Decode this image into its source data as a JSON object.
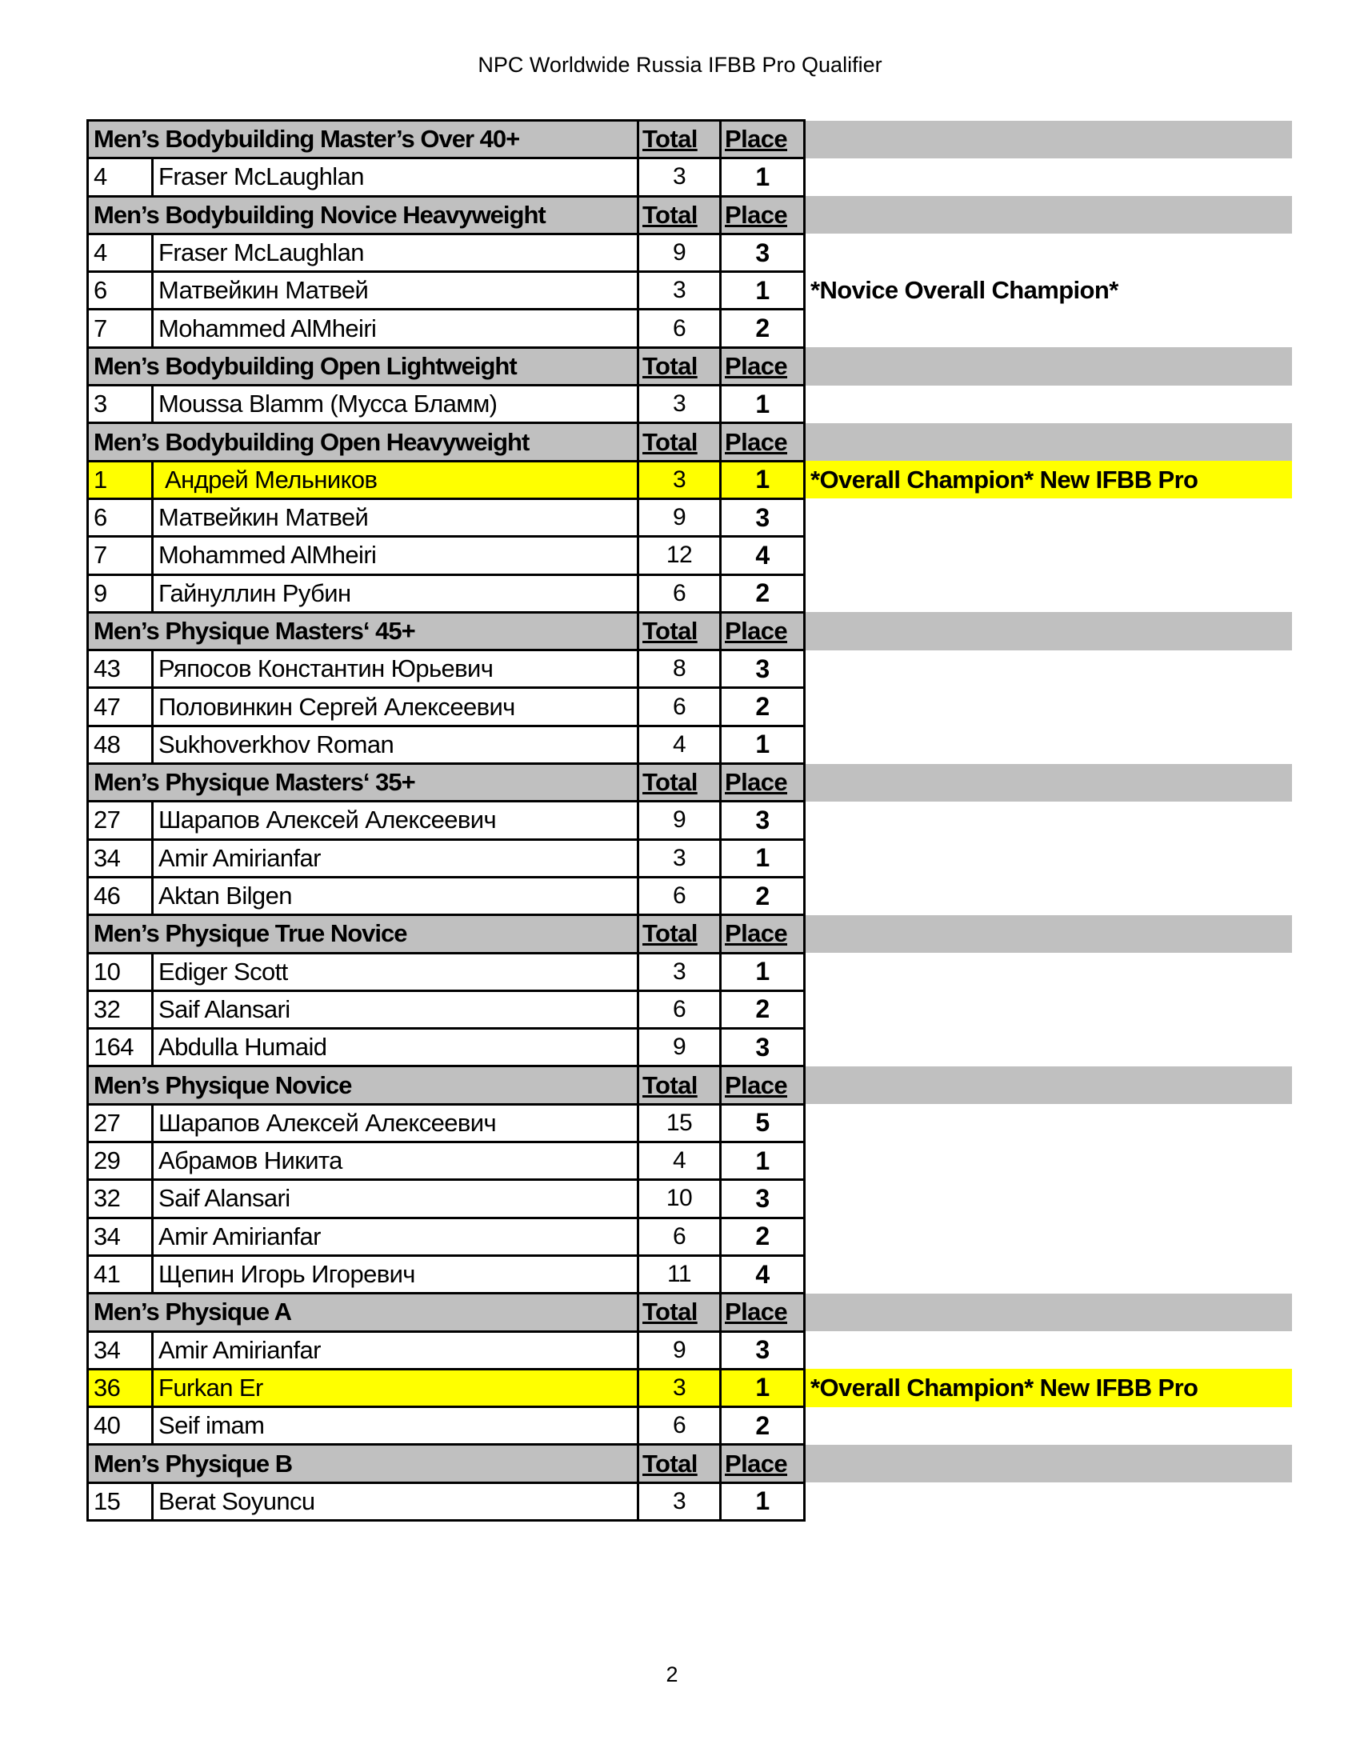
{
  "title": "NPC Worldwide Russia IFBB Pro Qualifier",
  "page_number": "2",
  "colors": {
    "header_bg": "#c0c0c0",
    "highlight": "#ffff00"
  },
  "sections": [
    {
      "name": "Men’s Bodybuilding Master’s Over 40+",
      "total_label": "Total",
      "place_label": "Place",
      "rows": [
        {
          "no": "4",
          "name": "Fraser McLaughlan",
          "total": "3",
          "place": "1"
        }
      ]
    },
    {
      "name": "Men’s Bodybuilding Novice Heavyweight",
      "total_label": "Total",
      "place_label": "Place",
      "rows": [
        {
          "no": "4",
          "name": "Fraser McLaughlan",
          "total": "9",
          "place": "3"
        },
        {
          "no": "6",
          "name": "Матвейкин Матвей",
          "total": "3",
          "place": "1",
          "note": "*Novice Overall Champion*"
        },
        {
          "no": "7",
          "name": "Mohammed AlMheiri",
          "total": "6",
          "place": "2"
        }
      ]
    },
    {
      "name": "Men’s Bodybuilding Open Lightweight",
      "total_label": "Total",
      "place_label": "Place",
      "rows": [
        {
          "no": "3",
          "name": "Moussa Blamm (Мусса Бламм)",
          "total": "3",
          "place": "1"
        }
      ]
    },
    {
      "name": "Men’s Bodybuilding Open Heavyweight",
      "total_label": "Total",
      "place_label": "Place",
      "rows": [
        {
          "no": "1",
          "name": " Андрей Мельников",
          "total": "3",
          "place": "1",
          "note": "*Overall Champion* New IFBB Pro",
          "highlight": true
        },
        {
          "no": "6",
          "name": "Матвейкин Матвей",
          "total": "9",
          "place": "3"
        },
        {
          "no": "7",
          "name": "Mohammed AlMheiri",
          "total": "12",
          "place": "4"
        },
        {
          "no": "9",
          "name": "Гайнуллин Рубин",
          "total": "6",
          "place": "2"
        }
      ]
    },
    {
      "name": "Men’s Physique Masters‘ 45+",
      "total_label": "Total",
      "place_label": "Place",
      "rows": [
        {
          "no": "43",
          "name": "Ряпосов Константин Юрьевич",
          "total": "8",
          "place": "3"
        },
        {
          "no": "47",
          "name": "Половинкин Сергей Алексеевич",
          "total": "6",
          "place": "2"
        },
        {
          "no": "48",
          "name": "Sukhoverkhov Roman",
          "total": "4",
          "place": "1"
        }
      ]
    },
    {
      "name": "Men’s Physique Masters‘ 35+",
      "total_label": "Total",
      "place_label": "Place",
      "rows": [
        {
          "no": "27",
          "name": "Шарапов Алексей Алексеевич",
          "total": "9",
          "place": "3"
        },
        {
          "no": "34",
          "name": "Amir Amirianfar",
          "total": "3",
          "place": "1"
        },
        {
          "no": "46",
          "name": "Aktan Bilgen",
          "total": "6",
          "place": "2"
        }
      ]
    },
    {
      "name": "Men’s Physique True Novice",
      "total_label": "Total",
      "place_label": "Place",
      "rows": [
        {
          "no": "10",
          "name": "Ediger Scott",
          "total": "3",
          "place": "1"
        },
        {
          "no": "32",
          "name": "Saif Alansari",
          "total": "6",
          "place": "2"
        },
        {
          "no": "164",
          "name": "Abdulla Humaid",
          "total": "9",
          "place": "3"
        }
      ]
    },
    {
      "name": "Men’s Physique Novice",
      "total_label": "Total",
      "place_label": "Place",
      "rows": [
        {
          "no": "27",
          "name": "Шарапов Алексей Алексеевич",
          "total": "15",
          "place": "5"
        },
        {
          "no": "29",
          "name": "Абрамов Никита",
          "total": "4",
          "place": "1"
        },
        {
          "no": "32",
          "name": "Saif Alansari",
          "total": "10",
          "place": "3"
        },
        {
          "no": "34",
          "name": "Amir Amirianfar",
          "total": "6",
          "place": "2"
        },
        {
          "no": "41",
          "name": "Щепин Игорь Игоревич",
          "total": "11",
          "place": "4"
        }
      ]
    },
    {
      "name": "Men’s Physique A",
      "total_label": "Total",
      "place_label": "Place",
      "rows": [
        {
          "no": "34",
          "name": "Amir Amirianfar",
          "total": "9",
          "place": "3"
        },
        {
          "no": "36",
          "name": "Furkan Er",
          "total": "3",
          "place": "1",
          "note": "*Overall Champion* New IFBB Pro",
          "highlight": true
        },
        {
          "no": "40",
          "name": "Seif imam",
          "total": "6",
          "place": "2"
        }
      ]
    },
    {
      "name": "Men’s Physique B",
      "total_label": "Total",
      "place_label": "Place",
      "rows": [
        {
          "no": "15",
          "name": "Berat Soyuncu",
          "total": "3",
          "place": "1"
        }
      ]
    }
  ]
}
